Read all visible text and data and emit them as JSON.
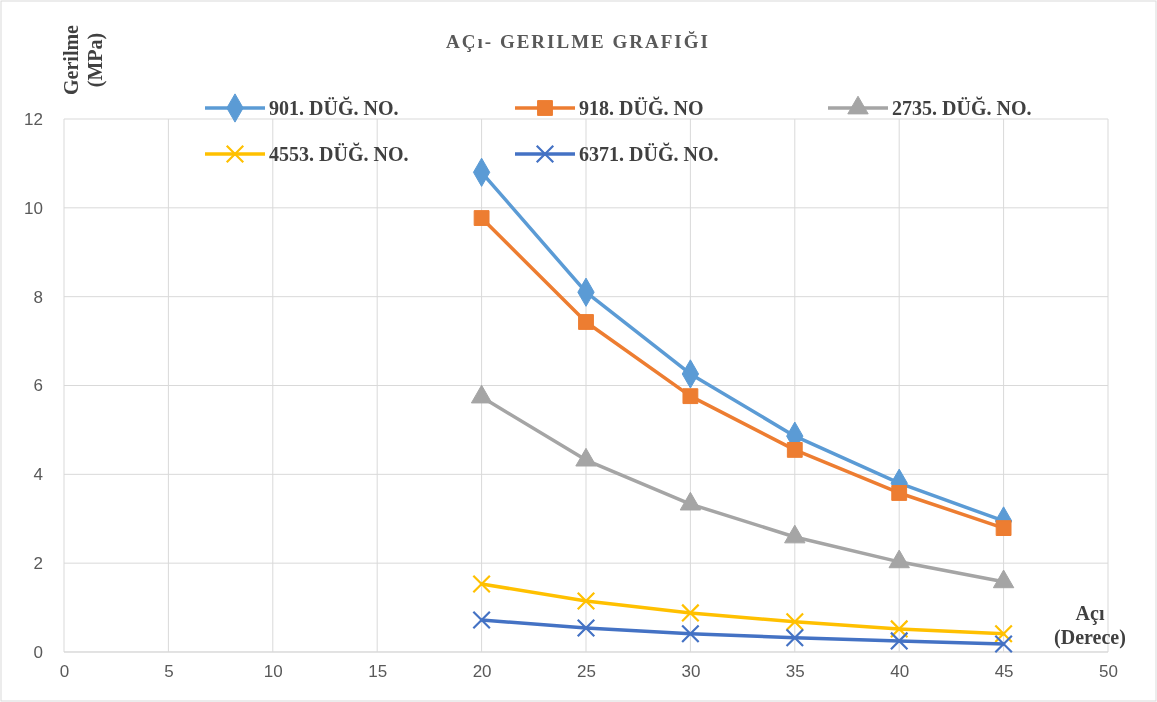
{
  "chart_data": {
    "type": "line",
    "title": "AÇı- GERILME GRAFIĞI",
    "ylabel": "Gerilme (MPa)",
    "xlabel": "Açı (Derece)",
    "x": [
      20,
      25,
      30,
      35,
      40,
      45
    ],
    "xlim": [
      0,
      50
    ],
    "xticks": [
      0,
      5,
      10,
      15,
      20,
      25,
      30,
      35,
      40,
      45,
      50
    ],
    "ylim": [
      0,
      12
    ],
    "yticks": [
      0,
      2,
      4,
      6,
      8,
      10,
      12
    ],
    "grid": true,
    "legend": "top",
    "series": [
      {
        "name": "901. DÜĞ. NO.",
        "color": "#5b9bd5",
        "marker": "diamond",
        "values": [
          10.8,
          8.1,
          6.26,
          4.86,
          3.8,
          2.95
        ]
      },
      {
        "name": "918. DÜĞ. NO",
        "color": "#ed7d31",
        "marker": "square",
        "values": [
          9.77,
          7.43,
          5.76,
          4.55,
          3.58,
          2.79
        ]
      },
      {
        "name": "2735. DÜĞ. NO.",
        "color": "#a5a5a5",
        "marker": "triangle",
        "values": [
          5.74,
          4.32,
          3.33,
          2.59,
          2.03,
          1.58
        ]
      },
      {
        "name": "4553. DÜĞ. NO.",
        "color": "#ffc000",
        "marker": "cross",
        "values": [
          1.53,
          1.15,
          0.88,
          0.68,
          0.52,
          0.41
        ]
      },
      {
        "name": "6371. DÜĞ. NO.",
        "color": "#4472c4",
        "marker": "cross",
        "values": [
          0.72,
          0.54,
          0.41,
          0.32,
          0.25,
          0.18
        ]
      }
    ]
  }
}
